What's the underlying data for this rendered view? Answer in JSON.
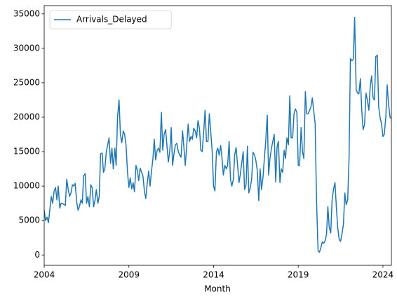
{
  "chart_data": {
    "type": "line",
    "x_label": "Month",
    "legend": "upper left",
    "xlim": [
      2004,
      2024.5
    ],
    "xticks": [
      2004,
      2009,
      2014,
      2019,
      2024
    ],
    "ylim": [
      -1500,
      36200
    ],
    "yticks": [
      0,
      5000,
      10000,
      15000,
      20000,
      25000,
      30000,
      35000
    ],
    "x": [
      2004,
      2004.08,
      2004.17,
      2004.25,
      2004.33,
      2004.42,
      2004.5,
      2004.58,
      2004.67,
      2004.75,
      2004.83,
      2004.92,
      2005,
      2005.08,
      2005.17,
      2005.25,
      2005.33,
      2005.42,
      2005.5,
      2005.58,
      2005.67,
      2005.75,
      2005.83,
      2005.92,
      2006,
      2006.08,
      2006.17,
      2006.25,
      2006.33,
      2006.42,
      2006.5,
      2006.58,
      2006.67,
      2006.75,
      2006.83,
      2006.92,
      2007,
      2007.08,
      2007.17,
      2007.25,
      2007.33,
      2007.42,
      2007.5,
      2007.58,
      2007.67,
      2007.75,
      2007.83,
      2007.92,
      2008,
      2008.08,
      2008.17,
      2008.25,
      2008.33,
      2008.42,
      2008.5,
      2008.58,
      2008.67,
      2008.75,
      2008.83,
      2008.92,
      2009,
      2009.08,
      2009.17,
      2009.25,
      2009.33,
      2009.42,
      2009.5,
      2009.58,
      2009.67,
      2009.75,
      2009.83,
      2009.92,
      2010,
      2010.08,
      2010.17,
      2010.25,
      2010.33,
      2010.42,
      2010.5,
      2010.58,
      2010.67,
      2010.75,
      2010.83,
      2010.92,
      2011,
      2011.08,
      2011.17,
      2011.25,
      2011.33,
      2011.42,
      2011.5,
      2011.58,
      2011.67,
      2011.75,
      2011.83,
      2011.92,
      2012,
      2012.08,
      2012.17,
      2012.25,
      2012.33,
      2012.42,
      2012.5,
      2012.58,
      2012.67,
      2012.75,
      2012.83,
      2012.92,
      2013,
      2013.08,
      2013.17,
      2013.25,
      2013.33,
      2013.42,
      2013.5,
      2013.58,
      2013.67,
      2013.75,
      2013.83,
      2013.92,
      2014,
      2014.08,
      2014.17,
      2014.25,
      2014.33,
      2014.42,
      2014.5,
      2014.58,
      2014.67,
      2014.75,
      2014.83,
      2014.92,
      2015,
      2015.08,
      2015.17,
      2015.25,
      2015.33,
      2015.42,
      2015.5,
      2015.58,
      2015.67,
      2015.75,
      2015.83,
      2015.92,
      2016,
      2016.08,
      2016.17,
      2016.25,
      2016.33,
      2016.42,
      2016.5,
      2016.58,
      2016.67,
      2016.75,
      2016.83,
      2016.92,
      2017,
      2017.08,
      2017.17,
      2017.25,
      2017.33,
      2017.42,
      2017.5,
      2017.58,
      2017.67,
      2017.75,
      2017.83,
      2017.92,
      2018,
      2018.08,
      2018.17,
      2018.25,
      2018.33,
      2018.42,
      2018.5,
      2018.58,
      2018.67,
      2018.75,
      2018.83,
      2018.92,
      2019,
      2019.08,
      2019.17,
      2019.25,
      2019.33,
      2019.42,
      2019.5,
      2019.58,
      2019.67,
      2019.75,
      2019.83,
      2019.92,
      2020,
      2020.08,
      2020.17,
      2020.25,
      2020.33,
      2020.42,
      2020.5,
      2020.58,
      2020.67,
      2020.75,
      2020.83,
      2020.92,
      2021,
      2021.08,
      2021.17,
      2021.25,
      2021.33,
      2021.42,
      2021.5,
      2021.58,
      2021.67,
      2021.75,
      2021.83,
      2021.92,
      2022,
      2022.08,
      2022.17,
      2022.25,
      2022.33,
      2022.42,
      2022.5,
      2022.58,
      2022.67,
      2022.75,
      2022.83,
      2022.92,
      2023,
      2023.08,
      2023.17,
      2023.25,
      2023.33,
      2023.42,
      2023.5,
      2023.58,
      2023.67,
      2023.75,
      2023.83,
      2023.92,
      2024,
      2024.08,
      2024.17,
      2024.25,
      2024.33,
      2024.42,
      2024.5
    ],
    "series": [
      {
        "name": "Arrivals_Delayed",
        "color": "#1f77b4",
        "values": [
          6500,
          5000,
          5500,
          4700,
          6500,
          8500,
          7500,
          9200,
          9800,
          8000,
          10000,
          6800,
          7500,
          7500,
          7300,
          7200,
          11000,
          9500,
          8500,
          9000,
          10200,
          10000,
          10400,
          7700,
          6500,
          7000,
          8000,
          7500,
          11500,
          11800,
          7500,
          8500,
          7000,
          10200,
          9800,
          7000,
          8000,
          9500,
          7500,
          8500,
          14700,
          14800,
          12000,
          12500,
          15000,
          16000,
          17000,
          13300,
          15500,
          12500,
          15500,
          13000,
          20000,
          22500,
          17500,
          16300,
          18000,
          17500,
          16000,
          12000,
          9800,
          11200,
          9600,
          10500,
          9200,
          13000,
          12300,
          10800,
          12600,
          12000,
          11500,
          9200,
          8200,
          10300,
          12200,
          10000,
          12000,
          14000,
          16800,
          13800,
          15200,
          15500,
          14900,
          20700,
          15200,
          17500,
          18200,
          15800,
          13500,
          15200,
          18500,
          13000,
          14800,
          16000,
          16200,
          15000,
          14500,
          14200,
          18000,
          15600,
          13000,
          16000,
          19000,
          16500,
          17200,
          16800,
          18400,
          18000,
          17000,
          19500,
          18300,
          15200,
          15000,
          18000,
          21000,
          16500,
          16500,
          20500,
          18000,
          15000,
          10000,
          9300,
          15000,
          15500,
          14500,
          15900,
          14000,
          11600,
          13000,
          12500,
          13000,
          16500,
          11000,
          10000,
          11000,
          14600,
          15600,
          13000,
          10500,
          11700,
          13500,
          15000,
          9500,
          10200,
          15800,
          9000,
          9800,
          11000,
          14900,
          14500,
          13700,
          12300,
          7900,
          12500,
          9500,
          11300,
          14000,
          16500,
          20300,
          11600,
          14000,
          15500,
          16500,
          17500,
          10600,
          15700,
          16500,
          10500,
          12500,
          12000,
          15200,
          14000,
          17000,
          16000,
          23100,
          17000,
          17000,
          20500,
          21200,
          20700,
          13000,
          13000,
          18500,
          15000,
          14000,
          23700,
          20500,
          20500,
          21000,
          21500,
          22800,
          20800,
          19000,
          8000,
          600,
          400,
          1000,
          1900,
          1700,
          2000,
          3000,
          7000,
          4000,
          3200,
          8000,
          9500,
          10500,
          7000,
          4000,
          2200,
          2000,
          3000,
          4500,
          9000,
          7300,
          8000,
          14000,
          28500,
          28200,
          28400,
          34500,
          24000,
          23500,
          23400,
          25600,
          21000,
          18200,
          19000,
          23500,
          22500,
          21000,
          24500,
          26000,
          22800,
          22500,
          28800,
          29000,
          21500,
          20000,
          19000,
          17200,
          17500,
          20000,
          24700,
          22000,
          20000,
          19800
        ]
      }
    ]
  }
}
